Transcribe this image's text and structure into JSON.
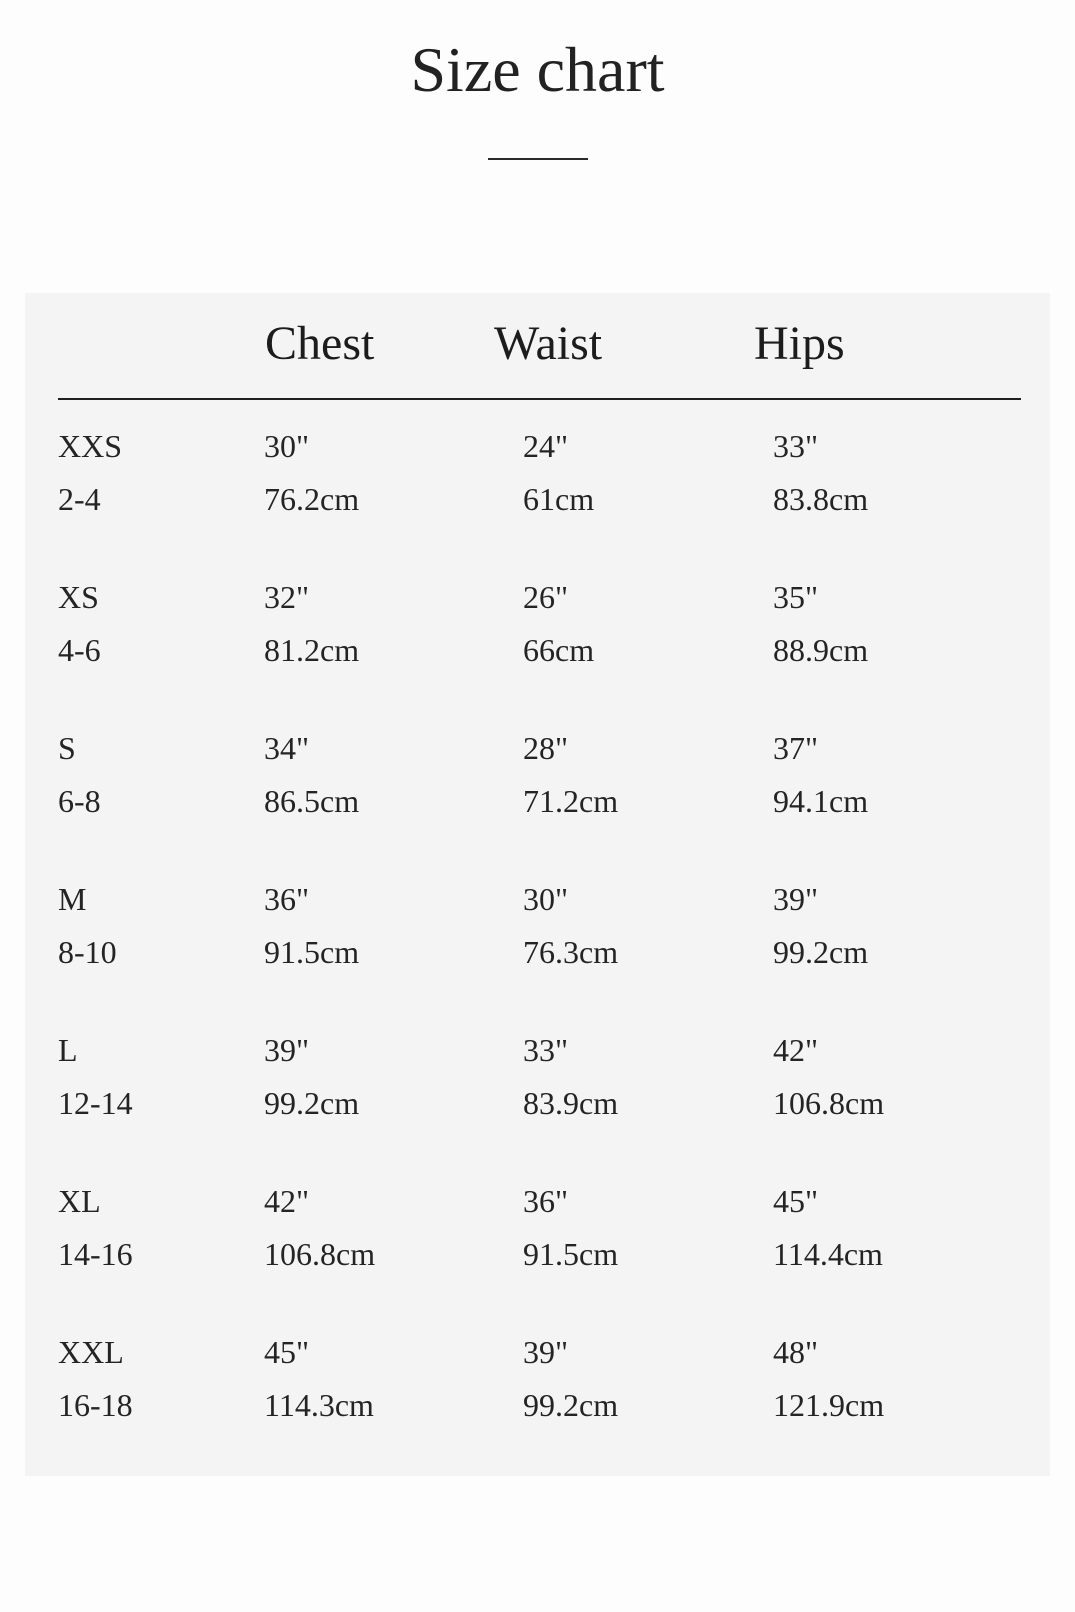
{
  "title": "Size chart",
  "table": {
    "headers": [
      "Chest",
      "Waist",
      "Hips"
    ],
    "rows": [
      {
        "size": "XXS",
        "range": "2-4",
        "chest_in": "30\"",
        "chest_cm": "76.2cm",
        "waist_in": "24\"",
        "waist_cm": "61cm",
        "hips_in": "33\"",
        "hips_cm": "83.8cm"
      },
      {
        "size": "XS",
        "range": "4-6",
        "chest_in": "32\"",
        "chest_cm": "81.2cm",
        "waist_in": "26\"",
        "waist_cm": "66cm",
        "hips_in": "35\"",
        "hips_cm": "88.9cm"
      },
      {
        "size": "S",
        "range": "6-8",
        "chest_in": "34\"",
        "chest_cm": "86.5cm",
        "waist_in": "28\"",
        "waist_cm": "71.2cm",
        "hips_in": "37\"",
        "hips_cm": "94.1cm"
      },
      {
        "size": "M",
        "range": "8-10",
        "chest_in": "36\"",
        "chest_cm": "91.5cm",
        "waist_in": "30\"",
        "waist_cm": "76.3cm",
        "hips_in": "39\"",
        "hips_cm": "99.2cm"
      },
      {
        "size": "L",
        "range": "12-14",
        "chest_in": "39\"",
        "chest_cm": "99.2cm",
        "waist_in": "33\"",
        "waist_cm": "83.9cm",
        "hips_in": "42\"",
        "hips_cm": "106.8cm"
      },
      {
        "size": "XL",
        "range": "14-16",
        "chest_in": "42\"",
        "chest_cm": "106.8cm",
        "waist_in": "36\"",
        "waist_cm": "91.5cm",
        "hips_in": "45\"",
        "hips_cm": "114.4cm"
      },
      {
        "size": "XXL",
        "range": "16-18",
        "chest_in": "45\"",
        "chest_cm": "114.3cm",
        "waist_in": "39\"",
        "waist_cm": "99.2cm",
        "hips_in": "48\"",
        "hips_cm": "121.9cm"
      }
    ]
  },
  "colors": {
    "page_bg": "#fdfdfd",
    "panel_bg": "#f5f4f5",
    "text": "#1e1e1e",
    "rule": "#1f1f1f"
  }
}
